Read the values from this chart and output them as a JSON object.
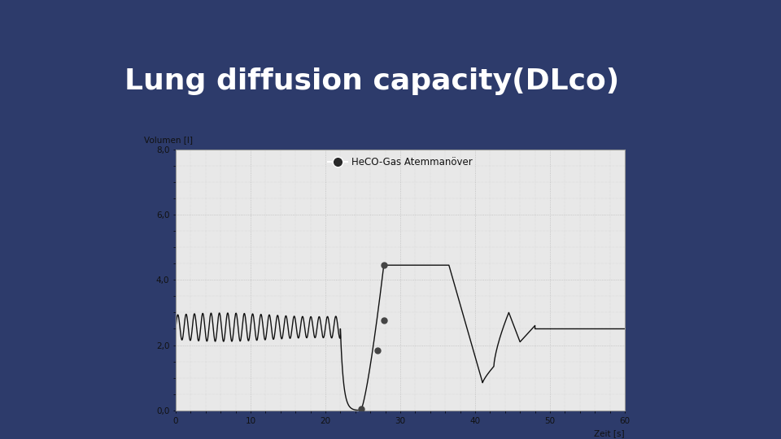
{
  "title": "Lung diffusion capacity(DLco)",
  "title_bg": "#aac4e8",
  "slide_bg": "#2d3b6b",
  "bottom_bar_color": "#4a5a9a",
  "chart_title": "HeCO-Gas Atemmanöver",
  "xlabel": "Zeit [s]",
  "ylabel": "Volumen [l]",
  "xlim": [
    0,
    60
  ],
  "ylim": [
    0.0,
    8.0
  ],
  "xticks": [
    0,
    10,
    20,
    30,
    40,
    50,
    60
  ],
  "yticks": [
    0.0,
    2.0,
    4.0,
    6.0,
    8.0
  ],
  "ytick_labels": [
    "0,0",
    "2,0",
    "4,0",
    "6,0",
    "8,0"
  ],
  "xtick_labels": [
    "0",
    "10",
    "20",
    "30",
    "40",
    "50",
    "60"
  ],
  "line_color": "#111111",
  "marker_color": "#444444",
  "chart_bg": "#e8e8e8",
  "chart_border": "#999999",
  "grid_color": "#bbbbbb",
  "legend_marker_color": "#2a2a2a",
  "sep_line_color": "#aaaaaa",
  "title_text_color": "#ffffff",
  "tick_label_color": "#111111"
}
